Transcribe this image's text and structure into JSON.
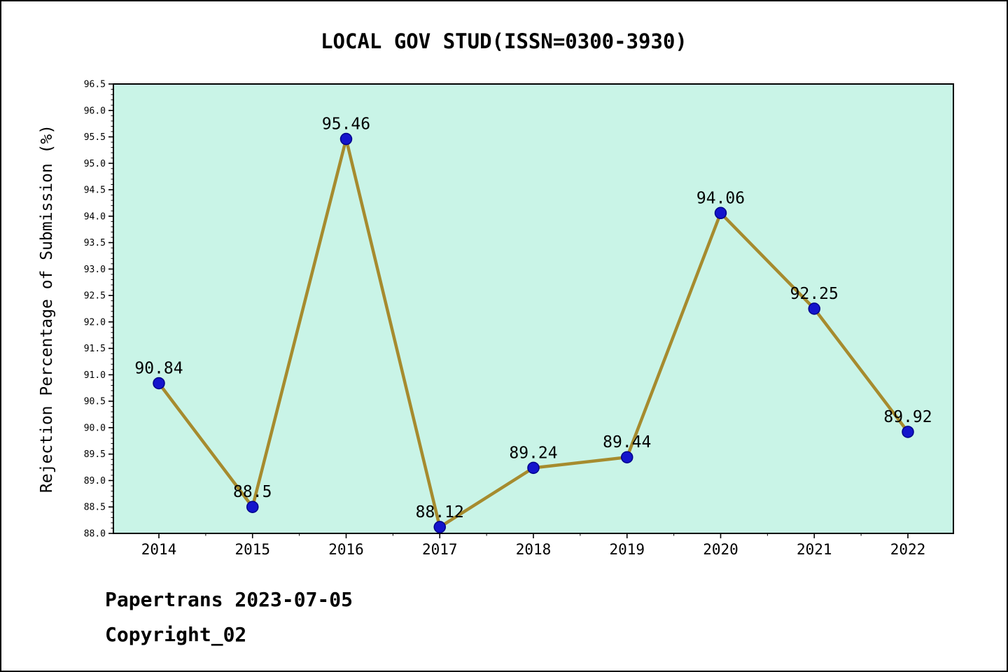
{
  "page": {
    "title": "LOCAL GOV STUD(ISSN=0300-3930)",
    "footer_line1": "Papertrans 2023-07-05",
    "footer_line2": "Copyright_02"
  },
  "chart_data": {
    "type": "line",
    "title": "LOCAL GOV STUD(ISSN=0300-3930)",
    "xlabel": "",
    "ylabel": "Rejection Percentage of Submission (%)",
    "categories": [
      "2014",
      "2015",
      "2016",
      "2017",
      "2018",
      "2019",
      "2020",
      "2021",
      "2022"
    ],
    "series": [
      {
        "name": "Rejection Percentage",
        "values": [
          90.84,
          88.5,
          95.46,
          88.12,
          89.24,
          89.44,
          94.06,
          92.25,
          89.92
        ],
        "point_labels": [
          "90.84",
          "88.5",
          "95.46",
          "88.12",
          "89.24",
          "89.44",
          "94.06",
          "92.25",
          "89.92"
        ]
      }
    ],
    "ylim": [
      88.0,
      96.5
    ],
    "ytick_step": 0.5,
    "ytick_minor_step": 0.1,
    "grid": false,
    "legend_position": "none",
    "colors": {
      "line": "#a68b2e",
      "marker_fill": "#1414cc",
      "marker_edge": "#00008b",
      "plot_background": "#c9f4e7",
      "axis": "#000000",
      "text": "#000000"
    }
  }
}
